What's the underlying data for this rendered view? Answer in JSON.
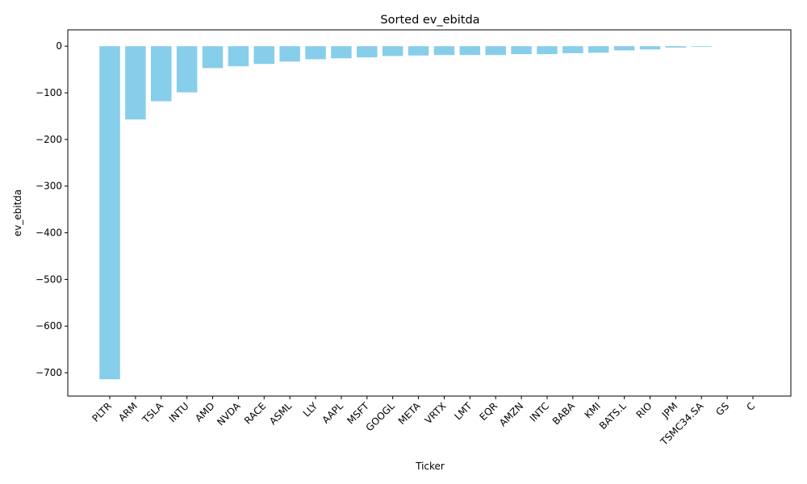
{
  "chart_data": {
    "type": "bar",
    "title": "Sorted ev_ebitda",
    "xlabel": "Ticker",
    "ylabel": "ev_ebitda",
    "categories": [
      "PLTR",
      "ARM",
      "TSLA",
      "INTU",
      "AMD",
      "NVDA",
      "RACE",
      "ASML",
      "LLY",
      "AAPL",
      "MSFT",
      "GOOGL",
      "META",
      "VRTX",
      "LMT",
      "EQR",
      "AMZN",
      "INTC",
      "BABA",
      "KMI",
      "BATS.L",
      "RIO",
      "JPM",
      "TSMC34.SA",
      "GS",
      "C"
    ],
    "values": [
      -714,
      -157,
      -118,
      -99,
      -47,
      -43,
      -38,
      -33,
      -28,
      -26,
      -24,
      -21,
      -20,
      -19,
      -19,
      -19,
      -17,
      -17,
      -15,
      -14,
      -9,
      -7,
      -3,
      -1.5,
      0,
      0
    ],
    "ylim": [
      -750,
      35
    ],
    "yticks": [
      0,
      -100,
      -200,
      -300,
      -400,
      -500,
      -600,
      -700
    ],
    "ytick_labels": [
      "0",
      "−100",
      "−200",
      "−300",
      "−400",
      "−500",
      "−600",
      "−700"
    ],
    "bar_color": "#87ceeb",
    "grid": false,
    "legend": "none"
  }
}
